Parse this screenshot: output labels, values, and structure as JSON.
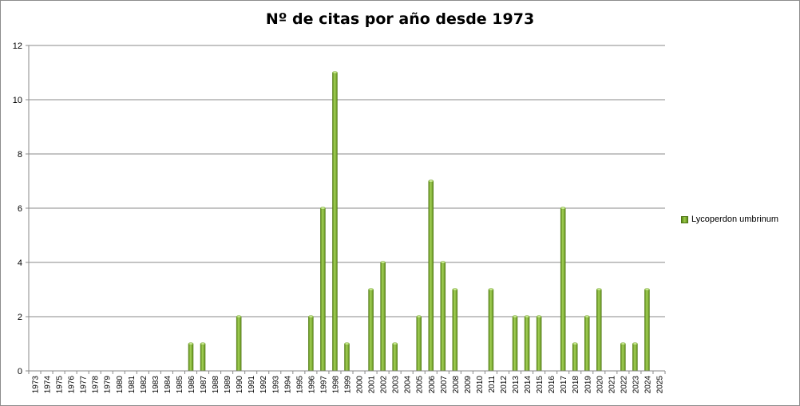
{
  "chart_data": {
    "type": "bar",
    "title": "Nº de citas por año desde 1973",
    "xlabel": "",
    "ylabel": "",
    "ylim": [
      0,
      12
    ],
    "yticks": [
      0,
      2,
      4,
      6,
      8,
      10,
      12
    ],
    "grid": true,
    "legend_position": "right",
    "categories": [
      "1973",
      "1974",
      "1975",
      "1976",
      "1977",
      "1978",
      "1979",
      "1980",
      "1981",
      "1982",
      "1983",
      "1984",
      "1985",
      "1986",
      "1987",
      "1988",
      "1989",
      "1990",
      "1991",
      "1992",
      "1993",
      "1994",
      "1995",
      "1996",
      "1997",
      "1998",
      "1999",
      "2000",
      "2001",
      "2002",
      "2003",
      "2004",
      "2005",
      "2006",
      "2007",
      "2008",
      "2009",
      "2010",
      "2011",
      "2012",
      "2013",
      "2014",
      "2015",
      "2016",
      "2017",
      "2018",
      "2019",
      "2020",
      "2021",
      "2022",
      "2023",
      "2024",
      "2025"
    ],
    "series": [
      {
        "name": "Lycoperdon umbrinum",
        "color": "#7fb236",
        "values": [
          0,
          0,
          0,
          0,
          0,
          0,
          0,
          0,
          0,
          0,
          0,
          0,
          0,
          1,
          1,
          0,
          0,
          2,
          0,
          0,
          0,
          0,
          0,
          2,
          6,
          11,
          1,
          0,
          3,
          4,
          1,
          0,
          2,
          7,
          4,
          3,
          0,
          0,
          3,
          0,
          2,
          2,
          2,
          0,
          6,
          1,
          2,
          3,
          0,
          1,
          1,
          3,
          0
        ]
      }
    ]
  }
}
